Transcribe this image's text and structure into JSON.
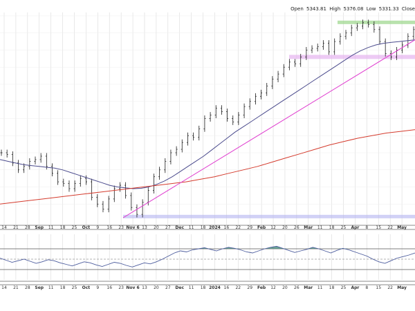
{
  "header": {
    "open_label": "Open",
    "open_value": "5343.81",
    "high_label": "High",
    "high_value": "5376.08",
    "low_label": "Low",
    "low_value": "5331.33",
    "close_label": "Close"
  },
  "colors": {
    "price_bars": "#1a1a1a",
    "ma_short": "#4a4a8c",
    "ma_long": "#d43a2c",
    "trendline": "#e040d0",
    "resistance_zone": "#9bd68a",
    "support_zone_top": "#e6b3f0",
    "support_zone_bottom": "#b3b3f0",
    "oscillator_line": "#4a5a9c",
    "oscillator_fill": "#4a8c7c",
    "grid": "#d9d9d9"
  },
  "chart_data": [
    {
      "type": "line",
      "panel": "price",
      "style": "ohlc-bars with moving averages",
      "x_ticks": [
        "14",
        "21",
        "28",
        "Sep",
        "11",
        "18",
        "25",
        "Oct",
        "9",
        "16",
        "23",
        "Nov 6",
        "13",
        "20",
        "27",
        "Dec",
        "11",
        "18",
        "2024",
        "16",
        "22",
        "29",
        "Feb",
        "12",
        "20",
        "26",
        "Mar",
        "11",
        "18",
        "25",
        "Apr",
        "8",
        "15",
        "22",
        "May"
      ],
      "x_tick_bold": [
        "Sep",
        "Oct",
        "Nov 6",
        "Dec",
        "2024",
        "Feb",
        "Mar",
        "Apr",
        "May"
      ],
      "series": [
        {
          "role": "close",
          "values": [
            4500,
            4490,
            4440,
            4400,
            4420,
            4450,
            4460,
            4480,
            4420,
            4380,
            4330,
            4320,
            4290,
            4320,
            4350,
            4330,
            4240,
            4200,
            4170,
            4230,
            4290,
            4310,
            4250,
            4180,
            4140,
            4210,
            4280,
            4360,
            4400,
            4450,
            4500,
            4520,
            4560,
            4600,
            4590,
            4640,
            4700,
            4720,
            4760,
            4740,
            4700,
            4680,
            4720,
            4770,
            4800,
            4830,
            4850,
            4890,
            4930,
            4960,
            5000,
            5030,
            5020,
            5060,
            5100,
            5110,
            5120,
            5140,
            5090,
            5150,
            5180,
            5200,
            5230,
            5240,
            5260,
            5250,
            5220,
            5150,
            5080,
            5060,
            5100,
            5130,
            5180,
            5220
          ]
        },
        {
          "role": "moving-average-short",
          "values": [
            4460,
            4450,
            4440,
            4430,
            4425,
            4420,
            4415,
            4410,
            4400,
            4385,
            4370,
            4355,
            4340,
            4325,
            4310,
            4300,
            4295,
            4290,
            4292,
            4300,
            4315,
            4335,
            4360,
            4390,
            4420,
            4450,
            4480,
            4515,
            4550,
            4585,
            4620,
            4650,
            4680,
            4710,
            4740,
            4770,
            4800,
            4830,
            4860,
            4890,
            4920,
            4950,
            4980,
            5010,
            5040,
            5070,
            5095,
            5115,
            5130,
            5140,
            5145,
            5150,
            5155,
            5160
          ]
        },
        {
          "role": "moving-average-long",
          "values": [
            4200,
            4210,
            4220,
            4230,
            4240,
            4250,
            4260,
            4270,
            4280,
            4290,
            4300,
            4310,
            4320,
            4330,
            4345,
            4360,
            4380,
            4400,
            4420,
            4445,
            4470,
            4495,
            4520,
            4545,
            4565,
            4585,
            4600,
            4615,
            4625,
            4635
          ]
        },
        {
          "role": "trendline",
          "values": [
            4120,
            5160
          ]
        }
      ],
      "zones": [
        {
          "role": "resistance",
          "value": 5260
        },
        {
          "role": "support",
          "value": 5060
        },
        {
          "role": "support-base",
          "value": 4125
        }
      ]
    },
    {
      "type": "area",
      "panel": "oscillator",
      "reference_levels": [
        70,
        50,
        30
      ],
      "values": [
        52,
        48,
        44,
        47,
        50,
        46,
        42,
        45,
        49,
        47,
        43,
        40,
        37,
        41,
        45,
        43,
        39,
        36,
        40,
        44,
        42,
        38,
        35,
        39,
        43,
        41,
        45,
        50,
        56,
        62,
        66,
        64,
        68,
        70,
        72,
        69,
        66,
        70,
        73,
        71,
        68,
        64,
        62,
        66,
        70,
        73,
        75,
        71,
        67,
        63,
        66,
        69,
        73,
        70,
        66,
        62,
        67,
        71,
        68,
        64,
        60,
        56,
        50,
        45,
        42,
        47,
        52,
        55,
        58,
        62
      ]
    }
  ]
}
